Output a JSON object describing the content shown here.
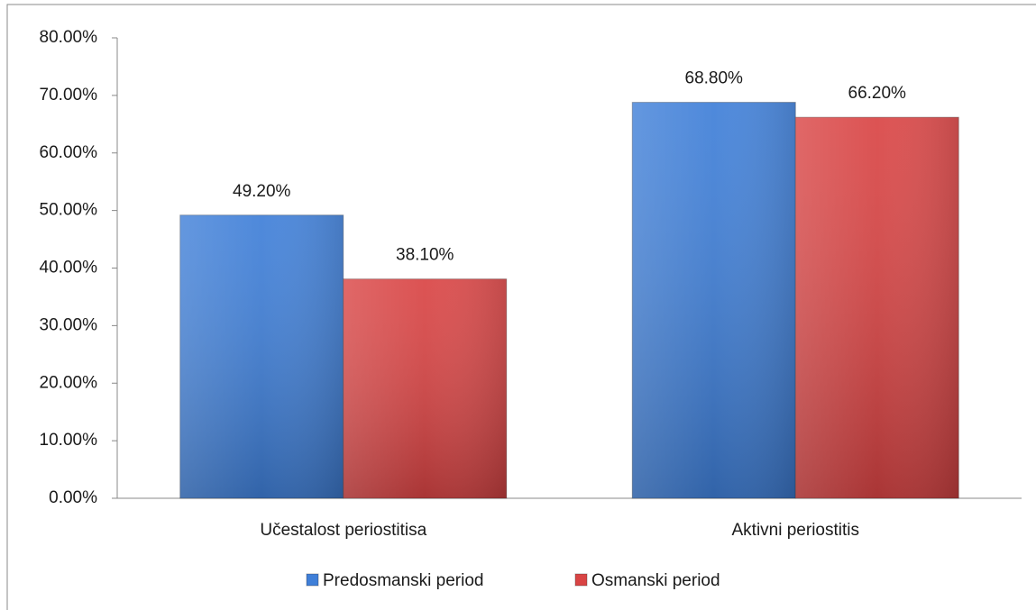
{
  "chart_data": {
    "type": "bar",
    "categories": [
      "Učestalost periostitisa",
      "Aktivni periostitis"
    ],
    "series": [
      {
        "name": "Predosmanski period",
        "color": "#3f7fd8",
        "values": [
          49.2,
          68.8
        ],
        "value_labels": [
          "49.20%",
          "68.80%"
        ]
      },
      {
        "name": "Osmanski period",
        "color": "#d94444",
        "values": [
          38.1,
          66.2
        ],
        "value_labels": [
          "38.10%",
          "66.20%"
        ]
      }
    ],
    "ylim": [
      0,
      80
    ],
    "yticks": [
      {
        "value": 0,
        "label": "0.00%"
      },
      {
        "value": 10,
        "label": "10.00%"
      },
      {
        "value": 20,
        "label": "20.00%"
      },
      {
        "value": 30,
        "label": "30.00%"
      },
      {
        "value": 40,
        "label": "40.00%"
      },
      {
        "value": 50,
        "label": "50.00%"
      },
      {
        "value": 60,
        "label": "60.00%"
      },
      {
        "value": 70,
        "label": "70.00%"
      },
      {
        "value": 80,
        "label": "80.00%"
      }
    ],
    "legend": "bottom"
  }
}
